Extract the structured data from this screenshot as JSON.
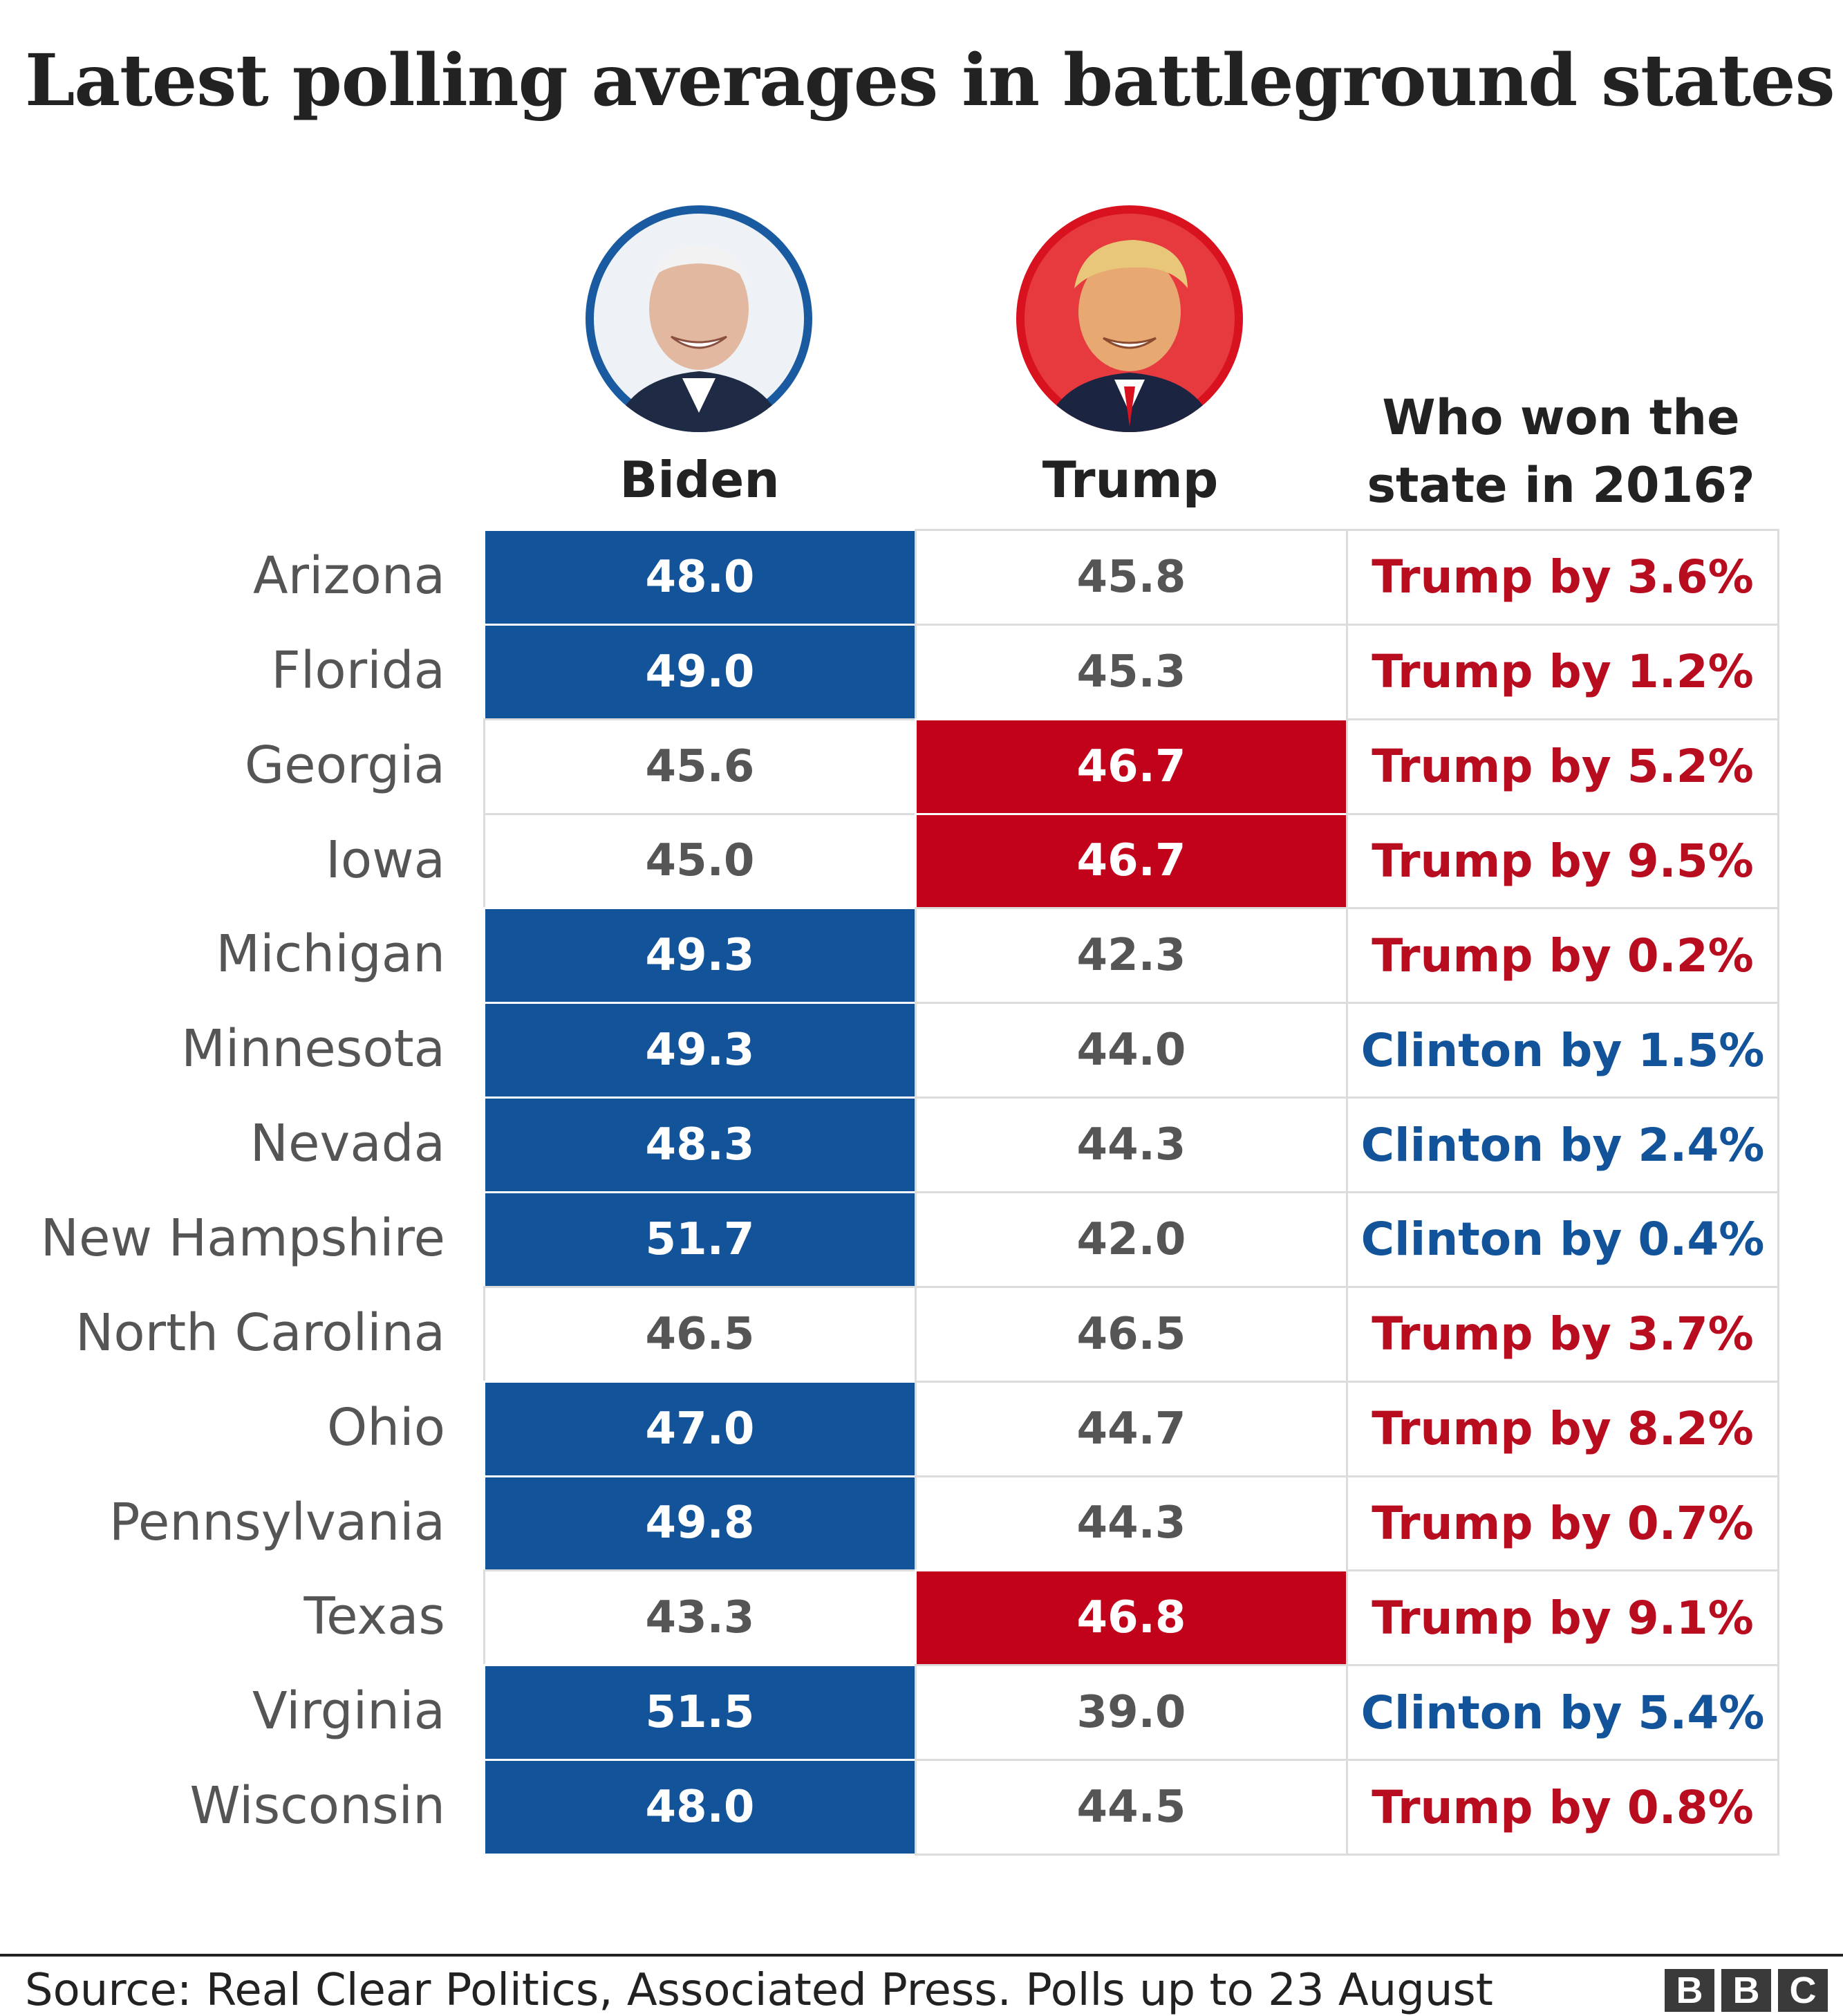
{
  "title": "Latest polling averages in battleground states",
  "headers": {
    "biden": "Biden",
    "trump": "Trump",
    "won_line1": "Who won the",
    "won_line2": "state in 2016?"
  },
  "colors": {
    "biden_blue": "#12539a",
    "trump_red": "#c2021a",
    "clinton_text": "#12539a",
    "trump_text": "#b80c1f"
  },
  "chart_data": {
    "type": "table",
    "title": "Latest polling averages in battleground states",
    "columns": [
      "Biden",
      "Trump",
      "Who won the state in 2016?"
    ],
    "rows": [
      {
        "state": "Arizona",
        "biden": "48.0",
        "trump": "45.8",
        "winner": "Trump",
        "won_2016": "Trump by 3.6%"
      },
      {
        "state": "Florida",
        "biden": "49.0",
        "trump": "45.3",
        "winner": "Trump",
        "won_2016": "Trump by 1.2%"
      },
      {
        "state": "Georgia",
        "biden": "45.6",
        "trump": "46.7",
        "winner": "Trump",
        "won_2016": "Trump by 5.2%"
      },
      {
        "state": "Iowa",
        "biden": "45.0",
        "trump": "46.7",
        "winner": "Trump",
        "won_2016": "Trump by 9.5%"
      },
      {
        "state": "Michigan",
        "biden": "49.3",
        "trump": "42.3",
        "winner": "Trump",
        "won_2016": "Trump by 0.2%"
      },
      {
        "state": "Minnesota",
        "biden": "49.3",
        "trump": "44.0",
        "winner": "Clinton",
        "won_2016": "Clinton by 1.5%"
      },
      {
        "state": "Nevada",
        "biden": "48.3",
        "trump": "44.3",
        "winner": "Clinton",
        "won_2016": "Clinton by 2.4%"
      },
      {
        "state": "New Hampshire",
        "biden": "51.7",
        "trump": "42.0",
        "winner": "Clinton",
        "won_2016": "Clinton by 0.4%"
      },
      {
        "state": "North Carolina",
        "biden": "46.5",
        "trump": "46.5",
        "winner": "Trump",
        "won_2016": "Trump by 3.7%"
      },
      {
        "state": "Ohio",
        "biden": "47.0",
        "trump": "44.7",
        "winner": "Trump",
        "won_2016": "Trump by 8.2%"
      },
      {
        "state": "Pennsylvania",
        "biden": "49.8",
        "trump": "44.3",
        "winner": "Trump",
        "won_2016": "Trump by 0.7%"
      },
      {
        "state": "Texas",
        "biden": "43.3",
        "trump": "46.8",
        "winner": "Trump",
        "won_2016": "Trump by 9.1%"
      },
      {
        "state": "Virginia",
        "biden": "51.5",
        "trump": "39.0",
        "winner": "Clinton",
        "won_2016": "Clinton by 5.4%"
      },
      {
        "state": "Wisconsin",
        "biden": "48.0",
        "trump": "44.5",
        "winner": "Trump",
        "won_2016": "Trump by 0.8%"
      }
    ]
  },
  "footer": {
    "source": "Source: Real Clear Politics, Associated Press. Polls up to 23 August",
    "logo_letters": [
      "B",
      "B",
      "C"
    ]
  }
}
